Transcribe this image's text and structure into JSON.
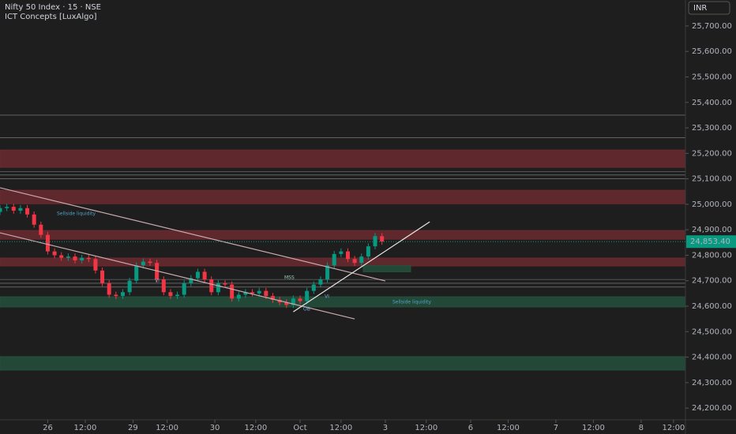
{
  "chart_data": {
    "type": "candlestick",
    "title": "Nifty 50 Index · 15 · NSE",
    "subtitle": "ICT Concepts [LuxAlgo]",
    "currency": "INR",
    "last_price": {
      "value": 24853.4,
      "label": "24,853.40"
    },
    "up_color": "#089981",
    "down_color": "#f23645",
    "xlim": [
      0,
      201
    ],
    "ylim": [
      24154,
      25802
    ],
    "xticks": [
      {
        "value": 14,
        "label": "26"
      },
      {
        "value": 25,
        "label": "12:00"
      },
      {
        "value": 39,
        "label": "29"
      },
      {
        "value": 49,
        "label": "12:00"
      },
      {
        "value": 63,
        "label": "30"
      },
      {
        "value": 75,
        "label": "12:00"
      },
      {
        "value": 88,
        "label": "Oct"
      },
      {
        "value": 100,
        "label": "12:00"
      },
      {
        "value": 113,
        "label": "3"
      },
      {
        "value": 125,
        "label": "12:00"
      },
      {
        "value": 138,
        "label": "6"
      },
      {
        "value": 149,
        "label": "12:00"
      },
      {
        "value": 163,
        "label": "7"
      },
      {
        "value": 174,
        "label": "12:00"
      },
      {
        "value": 188,
        "label": "8"
      },
      {
        "value": 197.5,
        "label": "12:00"
      }
    ],
    "yticks": [
      {
        "value": 24200,
        "label": "24,200.00"
      },
      {
        "value": 24300,
        "label": "24,300.00"
      },
      {
        "value": 24400,
        "label": "24,400.00"
      },
      {
        "value": 24500,
        "label": "24,500.00"
      },
      {
        "value": 24600,
        "label": "24,600.00"
      },
      {
        "value": 24700,
        "label": "24,700.00"
      },
      {
        "value": 24800,
        "label": "24,800.00"
      },
      {
        "value": 24900,
        "label": "24,900.00"
      },
      {
        "value": 25000,
        "label": "25,000.00"
      },
      {
        "value": 25100,
        "label": "25,100.00"
      },
      {
        "value": 25200,
        "label": "25,200.00"
      },
      {
        "value": 25300,
        "label": "25,300.00"
      },
      {
        "value": 25400,
        "label": "25,400.00"
      },
      {
        "value": 25500,
        "label": "25,500.00"
      },
      {
        "value": 25600,
        "label": "25,600.00"
      },
      {
        "value": 25700,
        "label": "25,700.00"
      }
    ],
    "x": [
      0,
      2,
      4,
      6,
      8,
      10,
      12,
      14,
      16,
      18,
      20,
      22,
      24,
      26,
      28,
      30,
      32,
      34,
      36,
      38,
      40,
      42,
      44,
      46,
      48,
      50,
      52,
      54,
      56,
      58,
      60,
      62,
      64,
      66,
      68,
      70,
      72,
      74,
      76,
      78,
      80,
      82,
      84,
      86,
      88,
      90,
      92,
      94,
      96,
      98,
      100,
      102,
      104,
      106,
      108,
      110,
      112
    ],
    "open": [
      24970,
      24985,
      24990,
      24975,
      24985,
      24960,
      24920,
      24880,
      24815,
      24800,
      24790,
      24795,
      24780,
      24790,
      24785,
      24740,
      24690,
      24645,
      24640,
      24655,
      24700,
      24760,
      24775,
      24770,
      24705,
      24655,
      24640,
      24645,
      24690,
      24710,
      24735,
      24705,
      24655,
      24690,
      24685,
      24630,
      24645,
      24655,
      24650,
      24660,
      24640,
      24625,
      24615,
      24605,
      24630,
      24620,
      24660,
      24685,
      24705,
      24760,
      24805,
      24815,
      24785,
      24770,
      24795,
      24835,
      24875
    ],
    "high": [
      24997,
      25002,
      25002,
      24997,
      24997,
      24972,
      24932,
      24892,
      24827,
      24812,
      24807,
      24807,
      24802,
      24802,
      24797,
      24752,
      24702,
      24657,
      24667,
      24712,
      24772,
      24787,
      24787,
      24782,
      24717,
      24667,
      24657,
      24702,
      24722,
      24747,
      24747,
      24717,
      24702,
      24702,
      24697,
      24657,
      24667,
      24667,
      24672,
      24672,
      24652,
      24637,
      24627,
      24642,
      24642,
      24672,
      24697,
      24717,
      24772,
      24817,
      24827,
      24827,
      24797,
      24807,
      24847,
      24887,
      24887
    ],
    "low": [
      24958,
      24973,
      24963,
      24963,
      24948,
      24908,
      24868,
      24803,
      24788,
      24778,
      24778,
      24768,
      24768,
      24773,
      24728,
      24678,
      24633,
      24628,
      24628,
      24643,
      24688,
      24748,
      24758,
      24693,
      24643,
      24628,
      24628,
      24633,
      24678,
      24698,
      24693,
      24643,
      24643,
      24673,
      24618,
      24618,
      24633,
      24638,
      24638,
      24628,
      24613,
      24603,
      24593,
      24593,
      24608,
      24608,
      24648,
      24673,
      24693,
      24748,
      24793,
      24773,
      24758,
      24758,
      24783,
      24823,
      24841.4
    ],
    "close": [
      24985,
      24990,
      24975,
      24985,
      24960,
      24920,
      24880,
      24815,
      24800,
      24790,
      24795,
      24780,
      24790,
      24785,
      24740,
      24690,
      24645,
      24640,
      24655,
      24700,
      24760,
      24775,
      24770,
      24705,
      24655,
      24640,
      24645,
      24690,
      24710,
      24735,
      24705,
      24655,
      24690,
      24685,
      24630,
      24645,
      24655,
      24650,
      24660,
      24640,
      24625,
      24615,
      24605,
      24630,
      24620,
      24660,
      24685,
      24705,
      24760,
      24805,
      24815,
      24785,
      24770,
      24795,
      24835,
      24875,
      24853.4
    ],
    "zones": [
      {
        "low": 25145,
        "high": 25213,
        "color": "#6b2a30"
      },
      {
        "low": 25002,
        "high": 25055,
        "color": "#6b2a30"
      },
      {
        "low": 24863,
        "high": 24897,
        "color": "#6b2a30"
      },
      {
        "low": 24758,
        "high": 24789,
        "color": "#6b2a30"
      },
      {
        "low": 24597,
        "high": 24637,
        "color": "#24503c"
      },
      {
        "low": 24349,
        "high": 24402,
        "color": "#24503c"
      },
      {
        "low": 24735,
        "high": 24760,
        "color": "#24503c"
      }
    ],
    "levels": [
      25350,
      25262,
      25129,
      25115,
      25101,
      24705,
      24690,
      24675
    ],
    "trendlines": [
      {
        "x": [
          0,
          113
        ],
        "y": [
          25065,
          24699
        ],
        "color": "#c9a9ad"
      },
      {
        "x": [
          0,
          104
        ],
        "y": [
          24888,
          24550
        ],
        "color": "#c9a9ad"
      },
      {
        "x": [
          86,
          126
        ],
        "y": [
          24578,
          24931
        ],
        "color": "#e8e8e8"
      }
    ],
    "annotations": [
      "Sellside liquidity",
      "Sellside liquidity",
      "MSS",
      "VI",
      "VI",
      "OB"
    ]
  }
}
